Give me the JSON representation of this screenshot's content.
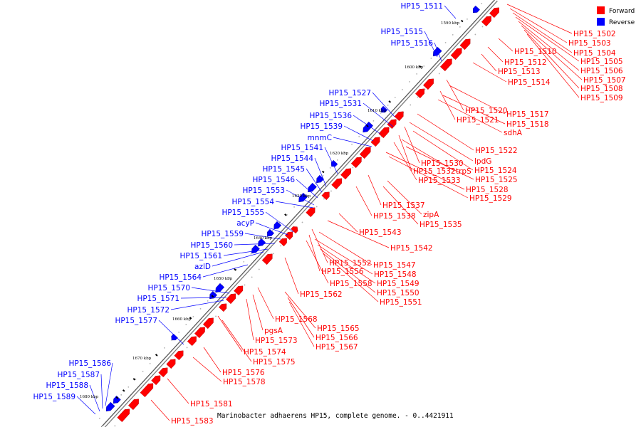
{
  "legend": [
    {
      "label": "Forward",
      "color": "#ff0000"
    },
    {
      "label": "Reverse",
      "color": "#0000ff"
    }
  ],
  "caption": "Marinobacter adhaerens HP15, complete genome. - 0..4421911",
  "ticks": [
    "1590 kbp",
    "1600 kbp",
    "1610 kbp",
    "1620 kbp",
    "1630 kbp",
    "1640 kbp",
    "1650 kbp",
    "1660 kbp",
    "1670 kbp",
    "1680 kbp"
  ],
  "forward_labels": [
    "HP15_1502",
    "HP15_1503",
    "HP15_1504",
    "HP15_1505",
    "HP15_1506",
    "HP15_1507",
    "HP15_1508",
    "HP15_1509",
    "HP15_1510",
    "HP15_1512",
    "HP15_1513",
    "HP15_1514",
    "HP15_1520",
    "HP15_1517",
    "HP15_1521",
    "HP15_1518",
    "sdhA",
    "HP15_1522",
    "lpdG",
    "HP15_1530",
    "HP15_1524",
    "HP15_1532",
    "trpS",
    "HP15_1533",
    "HP15_1525",
    "HP15_1528",
    "HP15_1529",
    "HP15_1537",
    "HP15_1538",
    "zipA",
    "HP15_1535",
    "HP15_1543",
    "HP15_1542",
    "HP15_1552",
    "HP15_1547",
    "HP15_1556",
    "HP15_1548",
    "HP15_1558",
    "HP15_1549",
    "HP15_1550",
    "HP15_1562",
    "HP15_1551",
    "HP15_1568",
    "HP15_1565",
    "pgsA",
    "HP15_1566",
    "HP15_1573",
    "HP15_1567",
    "HP15_1574",
    "HP15_1575",
    "HP15_1576",
    "HP15_1578",
    "HP15_1581",
    "HP15_1583"
  ],
  "reverse_labels": [
    "HP15_1511",
    "HP15_1515",
    "HP15_1516",
    "HP15_1527",
    "HP15_1531",
    "HP15_1536",
    "HP15_1539",
    "mnmC",
    "HP15_1541",
    "HP15_1544",
    "HP15_1545",
    "HP15_1546",
    "HP15_1553",
    "HP15_1554",
    "HP15_1555",
    "acyP",
    "HP15_1559",
    "HP15_1560",
    "HP15_1561",
    "azlD",
    "HP15_1564",
    "HP15_1570",
    "HP15_1571",
    "HP15_1572",
    "HP15_1577",
    "HP15_1586",
    "HP15_1587",
    "HP15_1588",
    "HP15_1589"
  ]
}
